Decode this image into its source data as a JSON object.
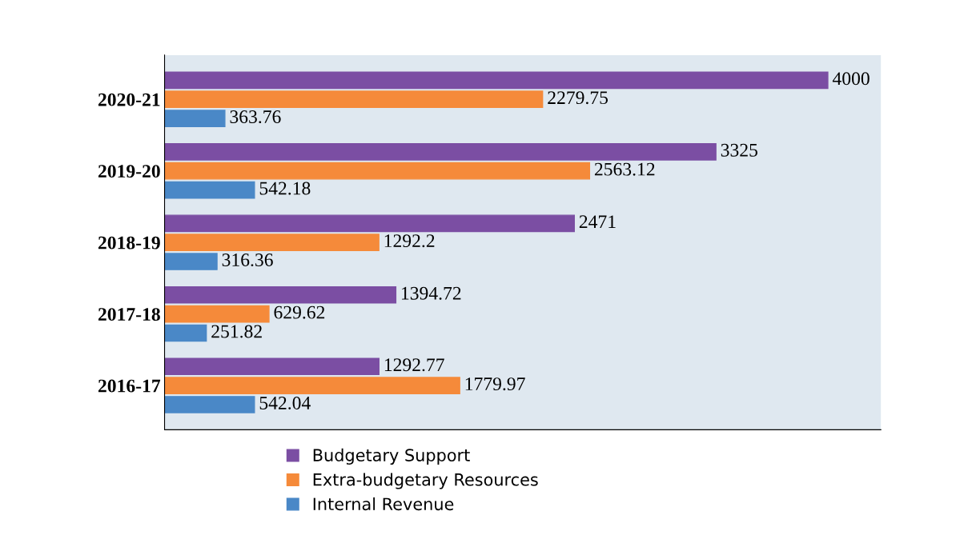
{
  "chart_data": {
    "type": "bar",
    "orientation": "horizontal",
    "categories": [
      "2020-21",
      "2019-20",
      "2018-19",
      "2017-18",
      "2016-17"
    ],
    "series": [
      {
        "name": "Budgetary Support",
        "color": "#7b4ea3",
        "values": [
          4000,
          3325,
          2471,
          1394.72,
          1292.77
        ]
      },
      {
        "name": "Extra-budgetary Resources",
        "color": "#f58a3a",
        "values": [
          2279.75,
          2563.12,
          1292.2,
          629.62,
          1779.97
        ]
      },
      {
        "name": "Internal Revenue",
        "color": "#4a88c7",
        "values": [
          363.76,
          542.18,
          316.36,
          251.82,
          542.04
        ]
      }
    ],
    "data_labels": true,
    "tick_labels": "y",
    "legend": "bottom",
    "grid": false
  }
}
